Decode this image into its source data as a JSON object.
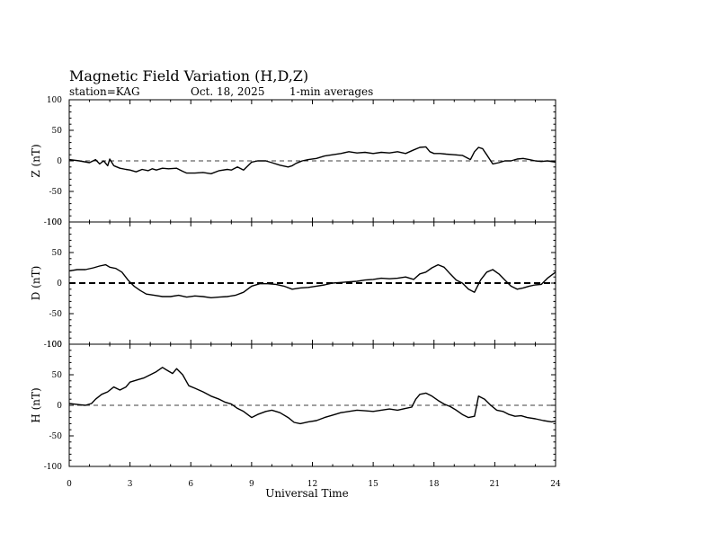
{
  "title": "Magnetic Field Variation (H,D,Z)",
  "subtitle": {
    "station": "station=KAG",
    "date": "Oct. 18, 2025",
    "averaging": "1-min averages"
  },
  "chart_data": {
    "type": "line",
    "xlabel": "Universal Time",
    "xlim": [
      0,
      24
    ],
    "xticks": [
      "0",
      "3",
      "6",
      "9",
      "12",
      "15",
      "18",
      "21",
      "24"
    ],
    "yticks": [
      "-100",
      "-50",
      "0",
      "50",
      "100"
    ],
    "grid": false,
    "panels": [
      {
        "name": "Z",
        "ylabel": "Z (nT)",
        "ylim": [
          -100,
          100
        ],
        "baseline_style": "thin dashed",
        "x": [
          0,
          0.5,
          1.0,
          1.3,
          1.5,
          1.7,
          1.9,
          2.0,
          2.2,
          2.5,
          2.8,
          3.0,
          3.3,
          3.6,
          3.9,
          4.1,
          4.3,
          4.6,
          4.9,
          5.3,
          5.6,
          5.8,
          6.2,
          6.6,
          7.0,
          7.4,
          7.8,
          8.0,
          8.3,
          8.6,
          9.0,
          9.3,
          9.7,
          10.0,
          10.4,
          10.8,
          11.0,
          11.2,
          11.5,
          11.8,
          12.2,
          12.6,
          13.0,
          13.4,
          13.8,
          14.2,
          14.6,
          15.0,
          15.4,
          15.8,
          16.2,
          16.6,
          17.0,
          17.3,
          17.6,
          17.8,
          18.0,
          18.3,
          18.6,
          19.0,
          19.4,
          19.8,
          20.0,
          20.2,
          20.4,
          20.6,
          20.9,
          21.2,
          21.5,
          21.8,
          22.1,
          22.4,
          22.7,
          23.0,
          23.3,
          23.6,
          24.0
        ],
        "y": [
          2,
          0,
          -3,
          2,
          -5,
          0,
          -8,
          3,
          -8,
          -12,
          -14,
          -15,
          -18,
          -14,
          -16,
          -13,
          -15,
          -12,
          -13,
          -12,
          -17,
          -20,
          -20,
          -19,
          -21,
          -16,
          -14,
          -15,
          -10,
          -15,
          -2,
          0,
          0,
          -3,
          -7,
          -10,
          -8,
          -4,
          0,
          2,
          4,
          8,
          10,
          12,
          15,
          13,
          14,
          12,
          14,
          13,
          15,
          12,
          18,
          22,
          23,
          15,
          12,
          12,
          11,
          10,
          9,
          2,
          15,
          22,
          20,
          10,
          -5,
          -3,
          0,
          0,
          3,
          4,
          2,
          0,
          -1,
          0,
          -2
        ]
      },
      {
        "name": "D",
        "ylabel": "D (nT)",
        "ylim": [
          -100,
          100
        ],
        "baseline_style": "thick dashed",
        "x": [
          0,
          0.4,
          0.8,
          1.2,
          1.5,
          1.8,
          2.0,
          2.3,
          2.6,
          2.9,
          3.2,
          3.5,
          3.8,
          4.2,
          4.6,
          5.0,
          5.4,
          5.8,
          6.2,
          6.6,
          7.0,
          7.4,
          7.8,
          8.2,
          8.6,
          9.0,
          9.4,
          9.8,
          10.2,
          10.6,
          11.0,
          11.4,
          11.8,
          12.2,
          12.6,
          13.0,
          13.4,
          13.8,
          14.2,
          14.6,
          15.0,
          15.4,
          15.8,
          16.2,
          16.6,
          17.0,
          17.3,
          17.6,
          17.9,
          18.2,
          18.5,
          18.8,
          19.1,
          19.4,
          19.7,
          20.0,
          20.3,
          20.6,
          20.9,
          21.2,
          21.5,
          21.8,
          22.1,
          22.4,
          22.7,
          23.0,
          23.3,
          23.6,
          24.0
        ],
        "y": [
          20,
          22,
          22,
          25,
          28,
          30,
          26,
          24,
          18,
          5,
          -5,
          -12,
          -18,
          -20,
          -22,
          -22,
          -20,
          -23,
          -21,
          -22,
          -24,
          -23,
          -22,
          -20,
          -15,
          -5,
          -1,
          -1,
          -2,
          -5,
          -10,
          -8,
          -7,
          -5,
          -3,
          0,
          1,
          2,
          3,
          5,
          6,
          8,
          7,
          8,
          10,
          6,
          15,
          18,
          25,
          30,
          26,
          15,
          5,
          0,
          -10,
          -15,
          5,
          18,
          22,
          15,
          5,
          -5,
          -10,
          -8,
          -5,
          -3,
          -2,
          8,
          18
        ]
      },
      {
        "name": "H",
        "ylabel": "H (nT)",
        "ylim": [
          -100,
          100
        ],
        "baseline_style": "thin dashed",
        "x": [
          0,
          0.5,
          0.8,
          1.1,
          1.3,
          1.6,
          1.9,
          2.2,
          2.5,
          2.8,
          3.0,
          3.4,
          3.7,
          4.0,
          4.3,
          4.6,
          4.8,
          5.1,
          5.3,
          5.6,
          5.9,
          6.2,
          6.6,
          7.0,
          7.4,
          7.7,
          8.0,
          8.3,
          8.6,
          9.0,
          9.3,
          9.7,
          10.0,
          10.4,
          10.8,
          11.1,
          11.4,
          11.8,
          12.2,
          12.6,
          13.0,
          13.4,
          13.8,
          14.2,
          14.6,
          15.0,
          15.4,
          15.8,
          16.2,
          16.6,
          16.9,
          17.1,
          17.3,
          17.6,
          17.9,
          18.2,
          18.5,
          18.8,
          19.1,
          19.4,
          19.7,
          20.0,
          20.2,
          20.5,
          20.8,
          21.1,
          21.4,
          21.7,
          22.0,
          22.3,
          22.6,
          23.0,
          23.4,
          23.8,
          24.0
        ],
        "y": [
          3,
          1,
          0,
          3,
          10,
          18,
          22,
          30,
          25,
          30,
          38,
          42,
          45,
          50,
          55,
          62,
          58,
          52,
          60,
          50,
          32,
          28,
          22,
          15,
          10,
          5,
          2,
          -5,
          -10,
          -20,
          -15,
          -10,
          -8,
          -12,
          -20,
          -28,
          -30,
          -27,
          -25,
          -20,
          -16,
          -12,
          -10,
          -8,
          -9,
          -10,
          -8,
          -6,
          -8,
          -5,
          -3,
          10,
          18,
          20,
          15,
          8,
          2,
          -2,
          -8,
          -15,
          -20,
          -18,
          15,
          10,
          0,
          -8,
          -10,
          -15,
          -18,
          -17,
          -20,
          -22,
          -25,
          -27,
          -26
        ]
      }
    ]
  }
}
